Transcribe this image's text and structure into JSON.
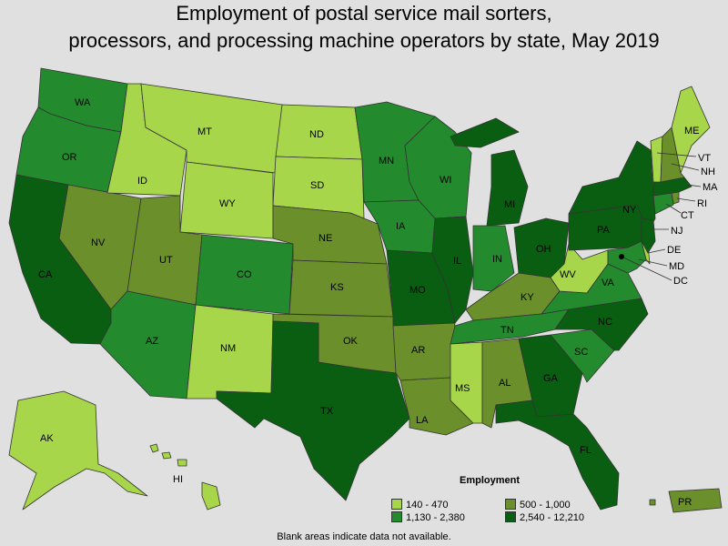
{
  "title_line1": "Employment of postal service mail sorters,",
  "title_line2": "processors, and processing machine operators by state, May 2019",
  "legend": {
    "title": "Employment",
    "items": [
      {
        "label": "140 - 470",
        "color": "#a8d64a"
      },
      {
        "label": "500 - 1,000",
        "color": "#6b8f2a"
      },
      {
        "label": "1,130 - 2,380",
        "color": "#248a2e"
      },
      {
        "label": "2,540 - 12,210",
        "color": "#0a5e12"
      }
    ]
  },
  "footnote": "Blank areas indicate data not available.",
  "states": {
    "WA": "WA",
    "OR": "OR",
    "CA": "CA",
    "NV": "NV",
    "ID": "ID",
    "MT": "MT",
    "WY": "WY",
    "UT": "UT",
    "AZ": "AZ",
    "CO": "CO",
    "NM": "NM",
    "ND": "ND",
    "SD": "SD",
    "NE": "NE",
    "KS": "KS",
    "OK": "OK",
    "TX": "TX",
    "MN": "MN",
    "IA": "IA",
    "MO": "MO",
    "AR": "AR",
    "LA": "LA",
    "WI": "WI",
    "IL": "IL",
    "MI": "MI",
    "IN": "IN",
    "OH": "OH",
    "KY": "KY",
    "TN": "TN",
    "MS": "MS",
    "AL": "AL",
    "GA": "GA",
    "FL": "FL",
    "SC": "SC",
    "NC": "NC",
    "VA": "VA",
    "WV": "WV",
    "PA": "PA",
    "NY": "NY",
    "ME": "ME",
    "VT": "VT",
    "NH": "NH",
    "MA": "MA",
    "RI": "RI",
    "CT": "CT",
    "NJ": "NJ",
    "DE": "DE",
    "MD": "MD",
    "DC": "DC",
    "AK": "AK",
    "HI": "HI",
    "PR": "PR"
  }
}
